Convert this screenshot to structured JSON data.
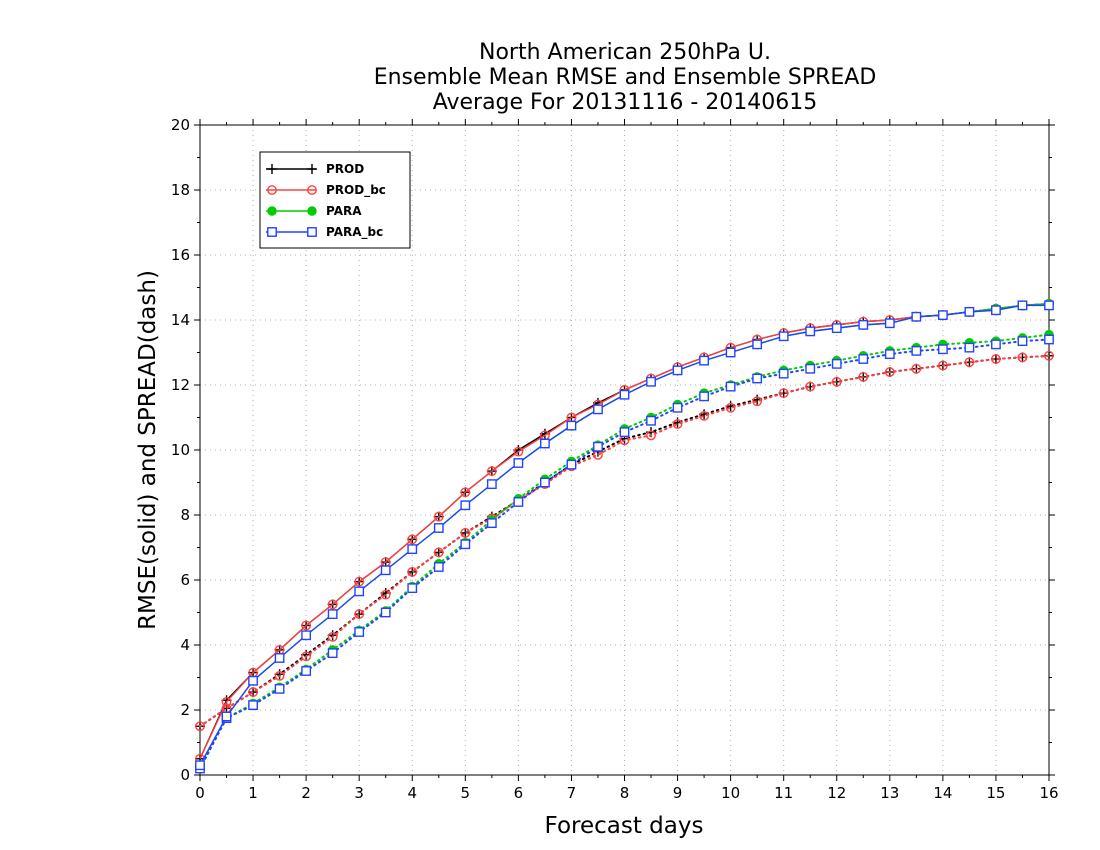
{
  "chart_data": {
    "type": "line",
    "title": [
      "North American 250hPa U.",
      "Ensemble Mean RMSE and Ensemble SPREAD",
      "Average For 20131116 - 20140615"
    ],
    "xlabel": "Forecast days",
    "ylabel": "RMSE(solid) and SPREAD(dash)",
    "xlim": [
      0,
      16
    ],
    "ylim": [
      0,
      20
    ],
    "xticks": [
      "0",
      "1",
      "2",
      "3",
      "4",
      "5",
      "6",
      "7",
      "8",
      "9",
      "10",
      "11",
      "12",
      "13",
      "14",
      "15",
      "16"
    ],
    "yticks": [
      "0",
      "2",
      "4",
      "6",
      "8",
      "10",
      "12",
      "14",
      "16",
      "18",
      "20"
    ],
    "grid": true,
    "legend_position": "top-left",
    "x": [
      0,
      0.5,
      1,
      1.5,
      2,
      2.5,
      3,
      3.5,
      4,
      4.5,
      5,
      5.5,
      6,
      6.5,
      7,
      7.5,
      8,
      8.5,
      9,
      9.5,
      10,
      10.5,
      11,
      11.5,
      12,
      12.5,
      13,
      13.5,
      14,
      14.5,
      15,
      15.5,
      16
    ],
    "series": [
      {
        "name": "PROD",
        "color": "#000000",
        "marker": "plus",
        "rmse": [
          0.5,
          2.3,
          3.15,
          3.85,
          4.6,
          5.25,
          5.95,
          6.55,
          7.25,
          7.95,
          8.7,
          9.35,
          10.0,
          10.5,
          11.0,
          11.45,
          11.85,
          12.2,
          12.55,
          12.85,
          13.15,
          13.4,
          13.6,
          13.75,
          13.85,
          13.95,
          14.0,
          14.1,
          14.15,
          14.25,
          14.35,
          14.45,
          14.5
        ],
        "spread": [
          1.5,
          2.05,
          2.55,
          3.1,
          3.7,
          4.3,
          4.95,
          5.6,
          6.25,
          6.85,
          7.45,
          7.95,
          8.45,
          9.0,
          9.55,
          9.95,
          10.35,
          10.55,
          10.85,
          11.1,
          11.35,
          11.55,
          11.75,
          11.95,
          12.1,
          12.25,
          12.4,
          12.5,
          12.6,
          12.7,
          12.8,
          12.85,
          12.9
        ]
      },
      {
        "name": "PROD_bc",
        "color": "#ff4040",
        "marker": "open-circle",
        "rmse": [
          0.5,
          2.25,
          3.15,
          3.85,
          4.6,
          5.25,
          5.95,
          6.55,
          7.25,
          7.95,
          8.7,
          9.35,
          9.95,
          10.45,
          11.0,
          11.4,
          11.85,
          12.2,
          12.55,
          12.85,
          13.15,
          13.4,
          13.6,
          13.75,
          13.85,
          13.95,
          14.0,
          14.1,
          14.15,
          14.25,
          14.35,
          14.45,
          14.5
        ],
        "spread": [
          1.5,
          2.05,
          2.55,
          3.05,
          3.65,
          4.25,
          4.95,
          5.55,
          6.25,
          6.85,
          7.45,
          7.9,
          8.45,
          8.95,
          9.5,
          9.85,
          10.3,
          10.45,
          10.8,
          11.05,
          11.3,
          11.5,
          11.75,
          11.95,
          12.1,
          12.25,
          12.4,
          12.5,
          12.6,
          12.7,
          12.8,
          12.85,
          12.9
        ]
      },
      {
        "name": "PARA",
        "color": "#00cc00",
        "marker": "filled-circle",
        "rmse": [
          0.3,
          1.8,
          2.9,
          3.6,
          4.3,
          4.95,
          5.65,
          6.3,
          6.95,
          7.6,
          8.3,
          8.95,
          9.6,
          10.2,
          10.75,
          11.25,
          11.7,
          12.1,
          12.45,
          12.75,
          13.0,
          13.25,
          13.5,
          13.65,
          13.75,
          13.85,
          13.9,
          14.1,
          14.15,
          14.25,
          14.35,
          14.45,
          14.5
        ],
        "spread": [
          0.2,
          1.75,
          2.2,
          2.7,
          3.25,
          3.85,
          4.45,
          5.05,
          5.8,
          6.5,
          7.15,
          7.85,
          8.5,
          9.1,
          9.65,
          10.15,
          10.65,
          11.0,
          11.4,
          11.75,
          12.0,
          12.25,
          12.45,
          12.6,
          12.75,
          12.9,
          13.05,
          13.15,
          13.25,
          13.3,
          13.35,
          13.45,
          13.55
        ]
      },
      {
        "name": "PARA_bc",
        "color": "#2244ff",
        "marker": "open-square",
        "rmse": [
          0.3,
          1.8,
          2.9,
          3.6,
          4.3,
          4.95,
          5.65,
          6.3,
          6.95,
          7.6,
          8.3,
          8.95,
          9.6,
          10.2,
          10.75,
          11.25,
          11.7,
          12.1,
          12.45,
          12.75,
          13.0,
          13.25,
          13.5,
          13.65,
          13.75,
          13.85,
          13.9,
          14.1,
          14.15,
          14.25,
          14.3,
          14.45,
          14.45
        ],
        "spread": [
          0.2,
          1.75,
          2.15,
          2.65,
          3.2,
          3.75,
          4.4,
          5.0,
          5.75,
          6.4,
          7.1,
          7.75,
          8.4,
          9.0,
          9.55,
          10.1,
          10.55,
          10.9,
          11.3,
          11.65,
          11.95,
          12.2,
          12.35,
          12.5,
          12.65,
          12.8,
          12.95,
          13.05,
          13.1,
          13.15,
          13.25,
          13.35,
          13.4
        ]
      }
    ]
  }
}
